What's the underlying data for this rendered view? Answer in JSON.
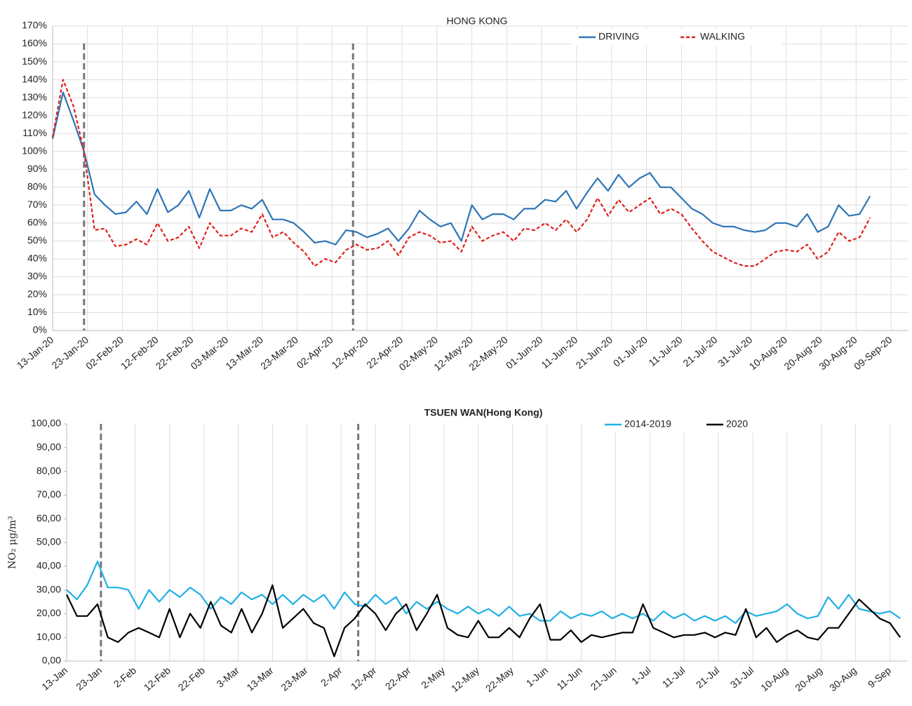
{
  "chart_data": [
    {
      "type": "line",
      "title": "HONG KONG",
      "x": [
        "13-Jan-20",
        "16-Jan-20",
        "19-Jan-20",
        "22-Jan-20",
        "25-Jan-20",
        "28-Jan-20",
        "31-Jan-20",
        "03-Feb-20",
        "06-Feb-20",
        "09-Feb-20",
        "12-Feb-20",
        "15-Feb-20",
        "18-Feb-20",
        "21-Feb-20",
        "24-Feb-20",
        "27-Feb-20",
        "01-Mar-20",
        "04-Mar-20",
        "07-Mar-20",
        "10-Mar-20",
        "13-Mar-20",
        "16-Mar-20",
        "19-Mar-20",
        "22-Mar-20",
        "25-Mar-20",
        "28-Mar-20",
        "31-Mar-20",
        "03-Apr-20",
        "06-Apr-20",
        "09-Apr-20",
        "12-Apr-20",
        "15-Apr-20",
        "18-Apr-20",
        "21-Apr-20",
        "24-Apr-20",
        "27-Apr-20",
        "30-Apr-20",
        "03-May-20",
        "06-May-20",
        "09-May-20",
        "12-May-20",
        "15-May-20",
        "18-May-20",
        "21-May-20",
        "24-May-20",
        "27-May-20",
        "30-May-20",
        "02-Jun-20",
        "05-Jun-20",
        "08-Jun-20",
        "11-Jun-20",
        "14-Jun-20",
        "17-Jun-20",
        "20-Jun-20",
        "23-Jun-20",
        "26-Jun-20",
        "29-Jun-20",
        "02-Jul-20",
        "05-Jul-20",
        "08-Jul-20",
        "11-Jul-20",
        "14-Jul-20",
        "17-Jul-20",
        "20-Jul-20",
        "23-Jul-20",
        "26-Jul-20",
        "29-Jul-20",
        "01-Aug-20",
        "04-Aug-20",
        "07-Aug-20",
        "10-Aug-20",
        "13-Aug-20",
        "16-Aug-20",
        "19-Aug-20",
        "22-Aug-20",
        "25-Aug-20",
        "28-Aug-20",
        "31-Aug-20",
        "03-Sep-20"
      ],
      "series": [
        {
          "name": "DRIVING",
          "color": "#2e75b6",
          "style": "solid",
          "values": [
            107,
            133,
            117,
            100,
            76,
            70,
            65,
            66,
            72,
            65,
            79,
            66,
            70,
            78,
            63,
            79,
            67,
            67,
            70,
            68,
            73,
            62,
            62,
            60,
            55,
            49,
            50,
            48,
            56,
            55,
            52,
            54,
            57,
            50,
            57,
            67,
            62,
            58,
            60,
            50,
            70,
            62,
            65,
            65,
            62,
            68,
            68,
            73,
            72,
            78,
            68,
            77,
            85,
            78,
            87,
            80,
            85,
            88,
            80,
            80,
            74,
            68,
            65,
            60,
            58,
            58,
            56,
            55,
            56,
            60,
            60,
            58,
            65,
            55,
            58,
            70,
            64,
            65,
            75
          ]
        },
        {
          "name": "WALKING",
          "color": "#e0201b",
          "style": "dashed",
          "values": [
            108,
            140,
            125,
            100,
            56,
            57,
            47,
            48,
            51,
            48,
            60,
            50,
            52,
            58,
            46,
            60,
            53,
            53,
            57,
            55,
            65,
            52,
            55,
            49,
            44,
            36,
            40,
            38,
            45,
            48,
            45,
            46,
            50,
            42,
            52,
            55,
            53,
            49,
            50,
            44,
            58,
            50,
            53,
            55,
            50,
            57,
            56,
            60,
            56,
            62,
            55,
            62,
            74,
            64,
            73,
            66,
            70,
            74,
            65,
            68,
            65,
            57,
            50,
            44,
            41,
            38,
            36,
            36,
            40,
            44,
            45,
            44,
            48,
            40,
            44,
            55,
            50,
            52,
            63
          ]
        }
      ],
      "xlim": [
        "13-Jan-20",
        "14-Sep-20"
      ],
      "xticks": [
        "13-Jan-20",
        "23-Jan-20",
        "02-Feb-20",
        "12-Feb-20",
        "22-Feb-20",
        "03-Mar-20",
        "13-Mar-20",
        "23-Mar-20",
        "02-Apr-20",
        "12-Apr-20",
        "22-Apr-20",
        "02-May-20",
        "12-May-20",
        "22-May-20",
        "01-Jun-20",
        "11-Jun-20",
        "21-Jun-20",
        "01-Jul-20",
        "11-Jul-20",
        "21-Jul-20",
        "31-Jul-20",
        "10-Aug-20",
        "20-Aug-20",
        "30-Aug-20",
        "09-Sep-20"
      ],
      "ylim": [
        0,
        170
      ],
      "yticks": [
        {
          "value": 0,
          "label": "0%"
        },
        {
          "value": 10,
          "label": "10%"
        },
        {
          "value": 20,
          "label": "20%"
        },
        {
          "value": 30,
          "label": "30%"
        },
        {
          "value": 40,
          "label": "40%"
        },
        {
          "value": 50,
          "label": "50%"
        },
        {
          "value": 60,
          "label": "60%"
        },
        {
          "value": 70,
          "label": "70%"
        },
        {
          "value": 80,
          "label": "80%"
        },
        {
          "value": 90,
          "label": "90%"
        },
        {
          "value": 100,
          "label": "100%"
        },
        {
          "value": 110,
          "label": "110%"
        },
        {
          "value": 120,
          "label": "120%"
        },
        {
          "value": 130,
          "label": "130%"
        },
        {
          "value": 140,
          "label": "140%"
        },
        {
          "value": 150,
          "label": "150%"
        },
        {
          "value": 160,
          "label": "160%"
        },
        {
          "value": 170,
          "label": "170%"
        }
      ],
      "grid": "both",
      "legend": "top-right",
      "vlines": [
        "22-Jan-20",
        "08-Apr-20"
      ]
    },
    {
      "type": "line",
      "title": "TSUEN WAN(Hong Kong)",
      "ylabel": "NO₂ μg/m³",
      "x": [
        "13-Jan",
        "16-Jan",
        "19-Jan",
        "22-Jan",
        "25-Jan",
        "28-Jan",
        "31-Jan",
        "03-Feb",
        "06-Feb",
        "09-Feb",
        "12-Feb",
        "15-Feb",
        "18-Feb",
        "21-Feb",
        "24-Feb",
        "27-Feb",
        "01-Mar",
        "04-Mar",
        "07-Mar",
        "10-Mar",
        "13-Mar",
        "16-Mar",
        "19-Mar",
        "22-Mar",
        "25-Mar",
        "28-Mar",
        "31-Mar",
        "03-Apr",
        "06-Apr",
        "09-Apr",
        "12-Apr",
        "15-Apr",
        "18-Apr",
        "21-Apr",
        "24-Apr",
        "27-Apr",
        "30-Apr",
        "03-May",
        "06-May",
        "09-May",
        "12-May",
        "15-May",
        "18-May",
        "21-May",
        "24-May",
        "27-May",
        "30-May",
        "02-Jun",
        "05-Jun",
        "08-Jun",
        "11-Jun",
        "14-Jun",
        "17-Jun",
        "20-Jun",
        "23-Jun",
        "26-Jun",
        "29-Jun",
        "02-Jul",
        "05-Jul",
        "08-Jul",
        "11-Jul",
        "14-Jul",
        "17-Jul",
        "20-Jul",
        "23-Jul",
        "26-Jul",
        "29-Jul",
        "01-Aug",
        "04-Aug",
        "07-Aug",
        "10-Aug",
        "13-Aug",
        "16-Aug",
        "19-Aug",
        "22-Aug",
        "25-Aug",
        "28-Aug",
        "31-Aug",
        "03-Sep",
        "06-Sep",
        "09-Sep",
        "12-Sep"
      ],
      "series": [
        {
          "name": "2014-2019",
          "color": "#1fb0e6",
          "style": "solid",
          "values": [
            30,
            26,
            32,
            42,
            31,
            31,
            30,
            22,
            30,
            25,
            30,
            27,
            31,
            28,
            22,
            27,
            24,
            29,
            26,
            28,
            24,
            28,
            24,
            28,
            25,
            28,
            22,
            29,
            24,
            23,
            28,
            24,
            27,
            20,
            25,
            22,
            25,
            22,
            20,
            23,
            20,
            22,
            19,
            23,
            19,
            20,
            17,
            17,
            21,
            18,
            20,
            19,
            21,
            18,
            20,
            18,
            20,
            17,
            21,
            18,
            20,
            17,
            19,
            17,
            19,
            16,
            21,
            19,
            20,
            21,
            24,
            20,
            18,
            19,
            27,
            22,
            28,
            22,
            21,
            20,
            21,
            18
          ]
        },
        {
          "name": "2020",
          "color": "#000000",
          "style": "solid",
          "values": [
            28,
            19,
            19,
            24,
            10,
            8,
            12,
            14,
            12,
            10,
            22,
            10,
            20,
            14,
            25,
            15,
            12,
            22,
            12,
            20,
            32,
            14,
            18,
            22,
            16,
            14,
            2,
            14,
            18,
            24,
            20,
            13,
            20,
            24,
            13,
            20,
            28,
            14,
            11,
            10,
            17,
            10,
            10,
            14,
            10,
            18,
            24,
            9,
            9,
            13,
            8,
            11,
            10,
            11,
            12,
            12,
            24,
            14,
            12,
            10,
            11,
            11,
            12,
            10,
            12,
            11,
            22,
            10,
            14,
            8,
            11,
            13,
            10,
            9,
            14,
            14,
            20,
            26,
            22,
            18,
            16,
            10
          ]
        }
      ],
      "xlim": [
        "13-Jan",
        "14-Sep"
      ],
      "xticks": [
        "13-Jan",
        "23-Jan",
        "2-Feb",
        "12-Feb",
        "22-Feb",
        "3-Mar",
        "13-Mar",
        "23-Mar",
        "2-Apr",
        "12-Apr",
        "22-Apr",
        "2-May",
        "12-May",
        "22-May",
        "1-Jun",
        "11-Jun",
        "21-Jun",
        "1-Jul",
        "11-Jul",
        "21-Jul",
        "31-Jul",
        "10-Aug",
        "20-Aug",
        "30-Aug",
        "9-Sep"
      ],
      "ylim": [
        0,
        100
      ],
      "yticks": [
        {
          "value": 0,
          "label": "0,00"
        },
        {
          "value": 10,
          "label": "10,00"
        },
        {
          "value": 20,
          "label": "20,00"
        },
        {
          "value": 30,
          "label": "30,00"
        },
        {
          "value": 40,
          "label": "40,00"
        },
        {
          "value": 50,
          "label": "50,00"
        },
        {
          "value": 60,
          "label": "60,00"
        },
        {
          "value": 70,
          "label": "70,00"
        },
        {
          "value": 80,
          "label": "80,00"
        },
        {
          "value": 90,
          "label": "90,00"
        },
        {
          "value": 100,
          "label": "100,00"
        }
      ],
      "grid": "vertical",
      "legend": "top-right",
      "vlines": [
        "23-Jan",
        "07-Apr"
      ]
    }
  ]
}
